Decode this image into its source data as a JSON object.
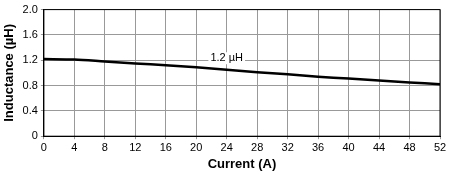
{
  "chart_data": {
    "type": "line",
    "x_label": "Current (A)",
    "y_label": "Inductance (µH)",
    "x": [
      0,
      4,
      8,
      12,
      16,
      20,
      24,
      28,
      32,
      36,
      40,
      44,
      48,
      52
    ],
    "values": [
      1.22,
      1.21,
      1.18,
      1.15,
      1.12,
      1.09,
      1.05,
      1.01,
      0.98,
      0.94,
      0.91,
      0.88,
      0.85,
      0.82
    ],
    "color": "#000000",
    "xlim": [
      0,
      52
    ],
    "xticks": [
      0,
      4,
      8,
      12,
      16,
      20,
      24,
      28,
      32,
      36,
      40,
      44,
      48,
      52
    ],
    "ylim": [
      0,
      2
    ],
    "yticks": [
      0,
      0.4,
      0.8,
      1.2,
      1.6,
      {
        "value": 2,
        "label": "2.0"
      }
    ],
    "grid": true,
    "annotations": [
      {
        "text": "1.2 µH",
        "x": 24,
        "y": 1.2
      }
    ]
  }
}
